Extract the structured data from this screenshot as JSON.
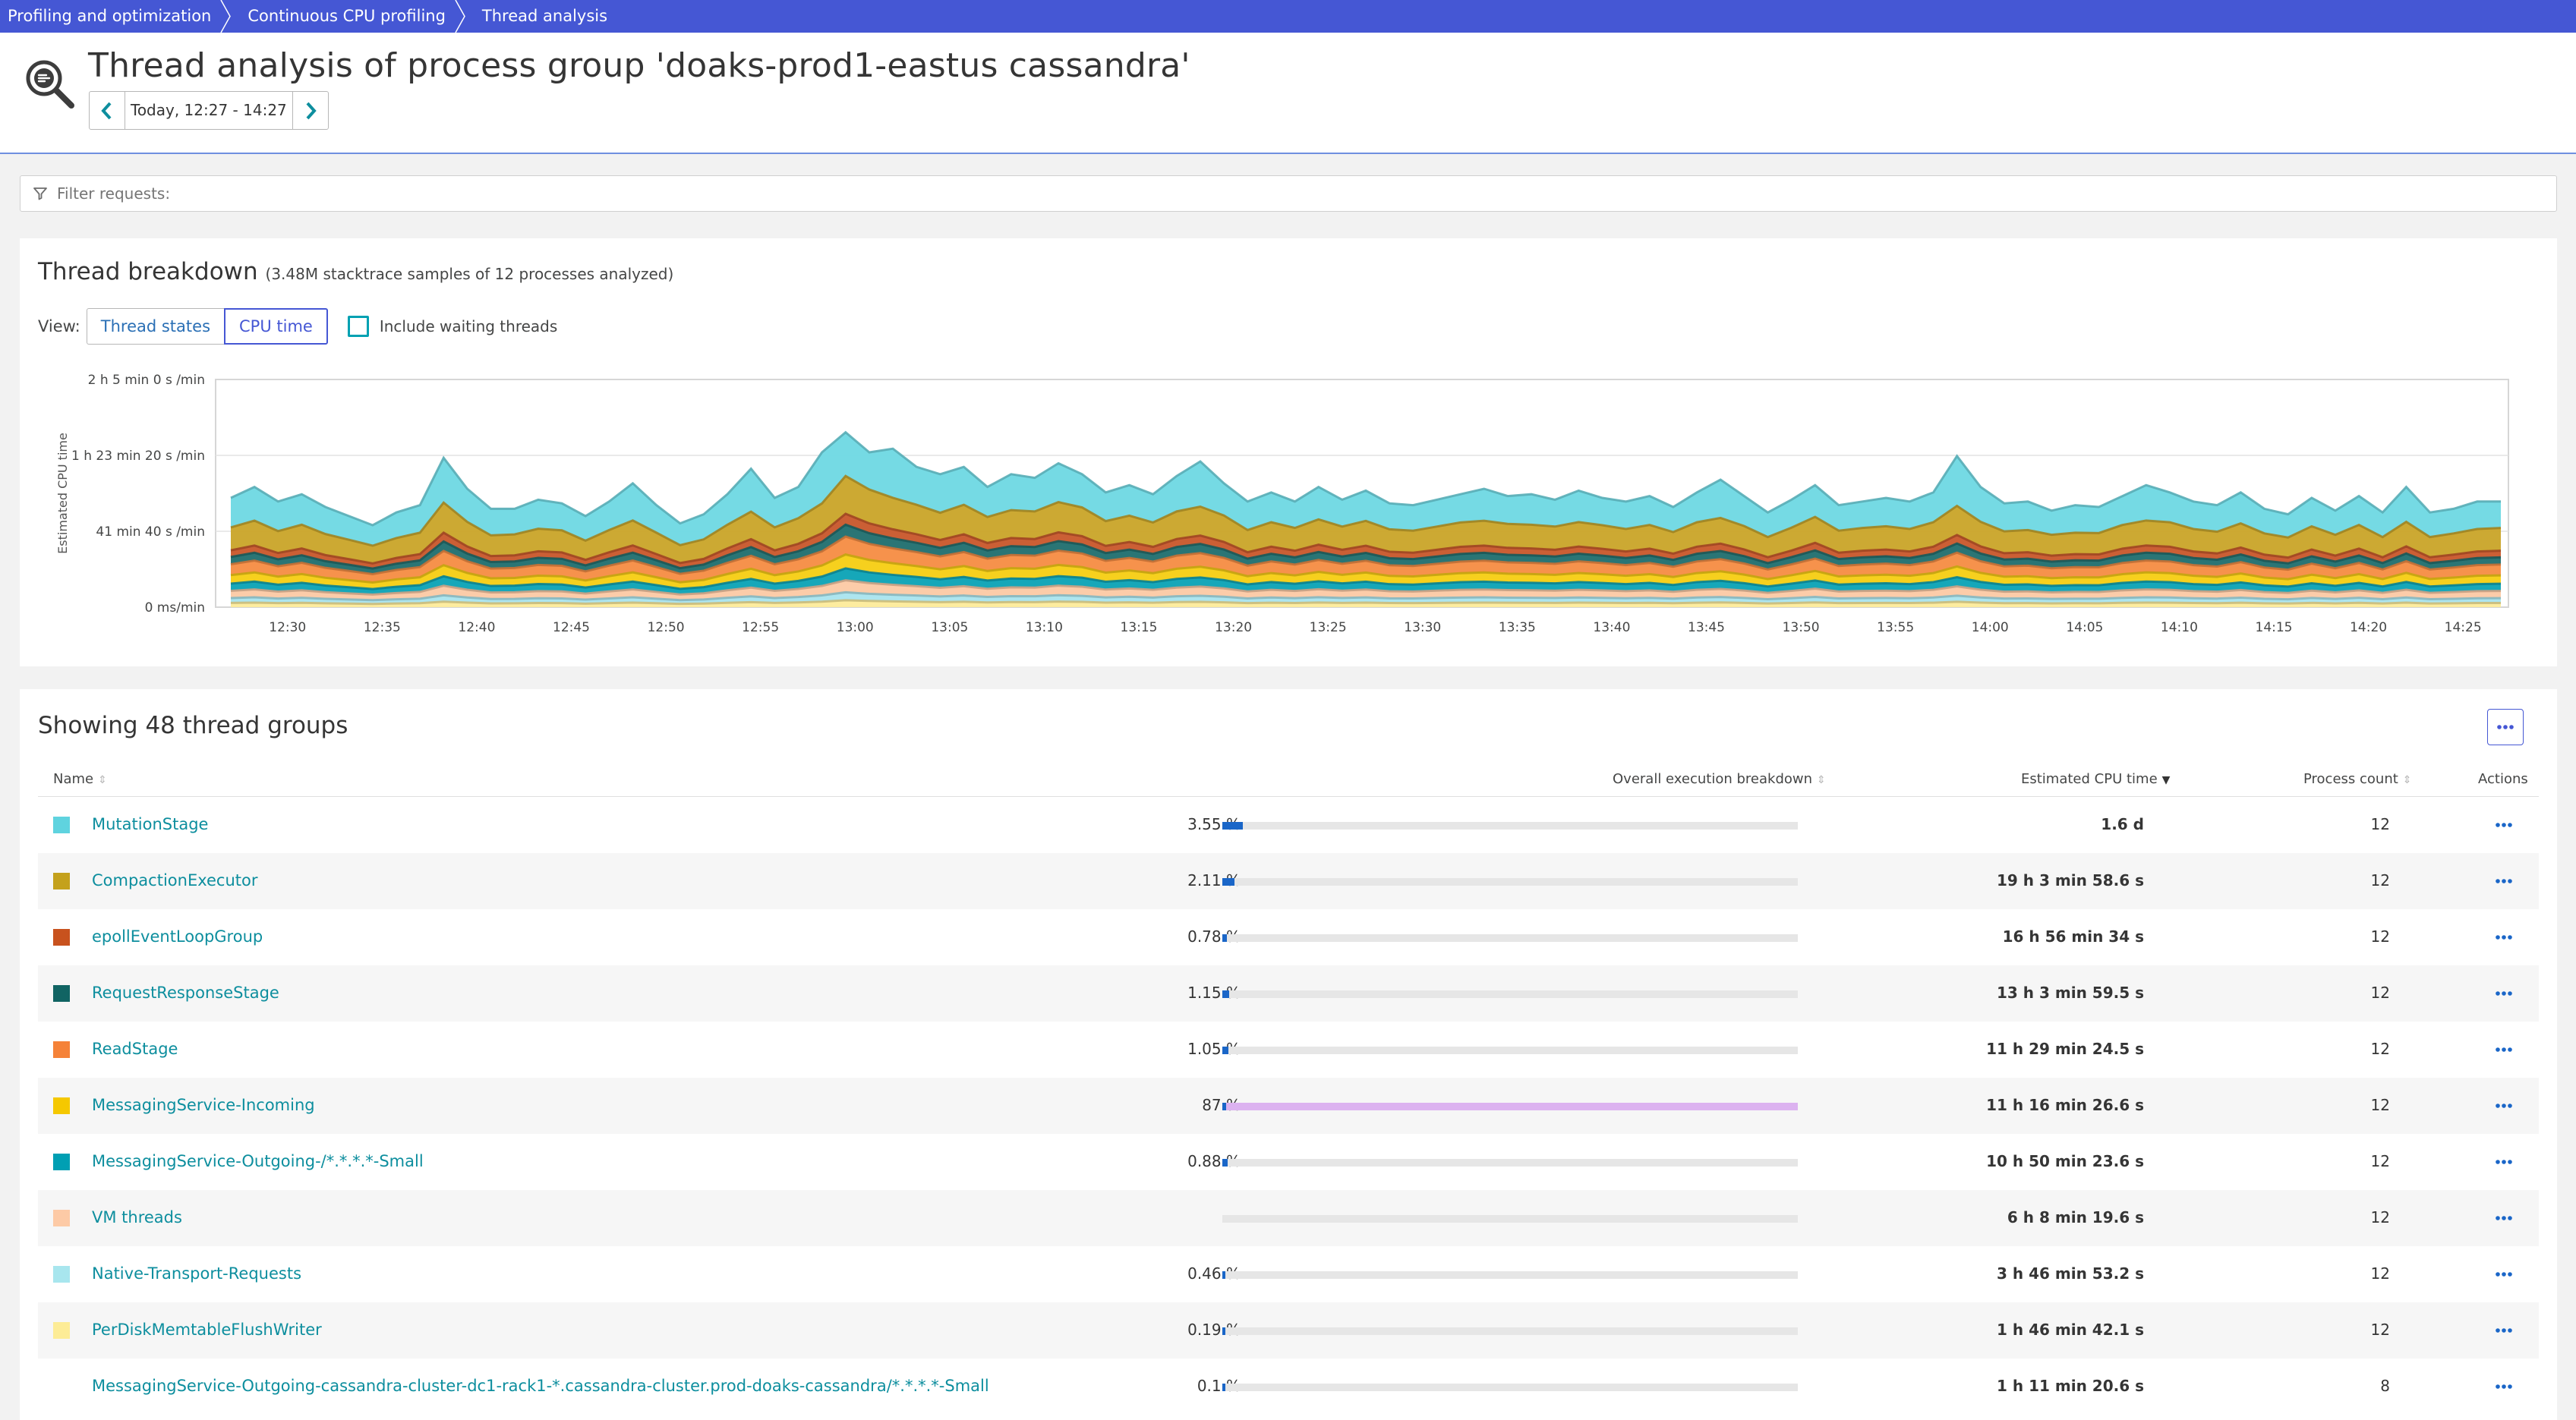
{
  "breadcrumbs": [
    "Profiling and optimization",
    "Continuous CPU profiling",
    "Thread analysis"
  ],
  "header": {
    "title": "Thread analysis of process group 'doaks-prod1-eastus cassandra'",
    "timeframe": "Today, 12:27 - 14:27"
  },
  "filter": {
    "placeholder": "Filter requests:"
  },
  "breakdown": {
    "title": "Thread breakdown",
    "subtitle": "(3.48M stacktrace samples of 12 processes analyzed)",
    "view_label": "View:",
    "view_options": [
      "Thread states",
      "CPU time"
    ],
    "selected_view": "CPU time",
    "include_waiting_label": "Include waiting threads",
    "include_waiting_checked": false
  },
  "chart_data": {
    "type": "area",
    "stacked": true,
    "ylabel": "Estimated CPU time",
    "y_ticks": [
      "0 ms/min",
      "41 min 40 s /min",
      "1 h 23 min 20 s /min",
      "2 h 5 min 0 s /min"
    ],
    "ylim_minutes_per_min": [
      0,
      125
    ],
    "x_ticks": [
      "12:30",
      "12:35",
      "12:40",
      "12:45",
      "12:50",
      "12:55",
      "13:00",
      "13:05",
      "13:10",
      "13:15",
      "13:20",
      "13:25",
      "13:30",
      "13:35",
      "13:40",
      "13:45",
      "13:50",
      "13:55",
      "14:00",
      "14:05",
      "14:10",
      "14:15",
      "14:20",
      "14:25"
    ],
    "x_start": "12:27",
    "x_end": "14:27",
    "total_minutes_per_min": [
      60,
      66,
      58,
      62,
      55,
      50,
      45,
      52,
      56,
      82,
      65,
      54,
      54,
      59,
      57,
      50,
      58,
      68,
      56,
      46,
      51,
      62,
      76,
      60,
      66,
      85,
      96,
      85,
      87,
      77,
      73,
      77,
      66,
      73,
      71,
      79,
      73,
      63,
      67,
      62,
      72,
      80,
      68,
      58,
      63,
      58,
      66,
      59,
      64,
      57,
      56,
      59,
      62,
      65,
      61,
      62,
      59,
      64,
      60,
      58,
      61,
      55,
      63,
      70,
      61,
      52,
      59,
      67,
      56,
      58,
      60,
      58,
      63,
      83,
      66,
      57,
      58,
      53,
      56,
      55,
      61,
      67,
      63,
      58,
      56,
      63,
      54,
      51,
      60,
      53,
      61,
      52,
      66,
      52,
      54,
      58,
      58
    ],
    "mutation_share": [
      0.27,
      0.28,
      0.28,
      0.27,
      0.27,
      0.26,
      0.25,
      0.27,
      0.27,
      0.3,
      0.28,
      0.27,
      0.26,
      0.27,
      0.26,
      0.27,
      0.27,
      0.3,
      0.27,
      0.26,
      0.27,
      0.27,
      0.31,
      0.27,
      0.26,
      0.33,
      0.25,
      0.24,
      0.31,
      0.27,
      0.29,
      0.27,
      0.25,
      0.27,
      0.26,
      0.27,
      0.25,
      0.25,
      0.25,
      0.25,
      0.27,
      0.31,
      0.26,
      0.27,
      0.26,
      0.25,
      0.27,
      0.25,
      0.26,
      0.25,
      0.25,
      0.25,
      0.25,
      0.27,
      0.25,
      0.27,
      0.25,
      0.27,
      0.25,
      0.26,
      0.26,
      0.25,
      0.26,
      0.3,
      0.27,
      0.26,
      0.26,
      0.26,
      0.25,
      0.25,
      0.26,
      0.26,
      0.26,
      0.33,
      0.29,
      0.27,
      0.27,
      0.25,
      0.27,
      0.26,
      0.26,
      0.29,
      0.26,
      0.26,
      0.26,
      0.27,
      0.25,
      0.25,
      0.26,
      0.25,
      0.26,
      0.26,
      0.29,
      0.26,
      0.25,
      0.26,
      0.25
    ],
    "series": [
      {
        "name": "MutationStage",
        "color": "#6ed8e3",
        "share": 0.27
      },
      {
        "name": "CompactionExecutor",
        "color": "#c9a428",
        "share": 0.19
      },
      {
        "name": "epollEventLoopGroup",
        "color": "#c8562a",
        "share": 0.055
      },
      {
        "name": "RequestResponseStage",
        "color": "#1f6e6e",
        "share": 0.06
      },
      {
        "name": "ReadStage",
        "color": "#f58c42",
        "share": 0.09
      },
      {
        "name": "MessagingService-Incoming",
        "color": "#f5cd12",
        "share": 0.07
      },
      {
        "name": "MessagingService-Outgoing-/*.*.*.*-Small",
        "color": "#0aa2b5",
        "share": 0.06
      },
      {
        "name": "VM threads",
        "color": "#fcc9a4",
        "share": 0.06
      },
      {
        "name": "Native-Transport-Requests",
        "color": "#a9e4ee",
        "share": 0.04
      },
      {
        "name": "PerDiskMemtableFlushWriter",
        "color": "#fdeb9a",
        "share": 0.035
      }
    ]
  },
  "table": {
    "title": "Showing 48 thread groups",
    "columns": {
      "name": "Name",
      "breakdown": "Overall execution breakdown",
      "cpu": "Estimated CPU time",
      "process_count": "Process count",
      "actions": "Actions"
    },
    "rows": [
      {
        "name": "MutationStage",
        "color": "#5fd3df",
        "pct": "3.55 %",
        "pct_value": 3.55,
        "fill": "#1a66c8",
        "cpu": "1.6 d",
        "count": "12"
      },
      {
        "name": "CompactionExecutor",
        "color": "#c4a11c",
        "pct": "2.11 %",
        "pct_value": 2.11,
        "fill": "#1a66c8",
        "cpu": "19 h 3 min 58.6 s",
        "count": "12"
      },
      {
        "name": "epollEventLoopGroup",
        "color": "#c8521e",
        "pct": "0.78 %",
        "pct_value": 0.78,
        "fill": "#1a66c8",
        "cpu": "16 h 56 min 34 s",
        "count": "12"
      },
      {
        "name": "RequestResponseStage",
        "color": "#116463",
        "pct": "1.15 %",
        "pct_value": 1.15,
        "fill": "#1a66c8",
        "cpu": "13 h 3 min 59.5 s",
        "count": "12"
      },
      {
        "name": "ReadStage",
        "color": "#f58238",
        "pct": "1.05 %",
        "pct_value": 1.05,
        "fill": "#1a66c8",
        "cpu": "11 h 29 min 24.5 s",
        "count": "12"
      },
      {
        "name": "MessagingService-Incoming",
        "color": "#f5c800",
        "pct": "87 %",
        "pct_value": 100,
        "fill": "#dcb2f0",
        "fill_mark": "#1a66c8",
        "cpu": "11 h 16 min 26.6 s",
        "count": "12"
      },
      {
        "name": "MessagingService-Outgoing-/*.*.*.*-Small",
        "color": "#009fb3",
        "pct": "0.88 %",
        "pct_value": 0.88,
        "fill": "#1a66c8",
        "cpu": "10 h 50 min 23.6 s",
        "count": "12"
      },
      {
        "name": "VM threads",
        "color": "#fdcaa6",
        "pct": "-",
        "pct_value": 0,
        "fill": "#1a66c8",
        "cpu": "6 h 8 min 19.6 s",
        "count": "12"
      },
      {
        "name": "Native-Transport-Requests",
        "color": "#a8e6ee",
        "pct": "0.46 %",
        "pct_value": 0.46,
        "fill": "#1a66c8",
        "cpu": "3 h 46 min 53.2 s",
        "count": "12"
      },
      {
        "name": "PerDiskMemtableFlushWriter",
        "color": "#fdec96",
        "pct": "0.19 %",
        "pct_value": 0.19,
        "fill": "#1a66c8",
        "cpu": "1 h 46 min 42.1 s",
        "count": "12"
      },
      {
        "name": "MessagingService-Outgoing-cassandra-cluster-dc1-rack1-*.cassandra-cluster.prod-doaks-cassandra/*.*.*.*-Small",
        "color": "",
        "pct": "0.1 %",
        "pct_value": 0.1,
        "fill": "#1a66c8",
        "cpu": "1 h 11 min 20.6 s",
        "count": "8"
      }
    ]
  }
}
